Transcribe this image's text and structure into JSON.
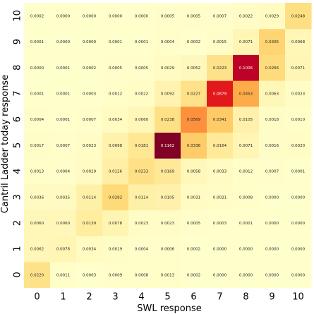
{
  "chart_data": {
    "type": "heatmap",
    "title": "",
    "xlabel": "SWL response",
    "ylabel": "Cantril Ladder today response",
    "x_categories": [
      "0",
      "1",
      "2",
      "3",
      "4",
      "5",
      "6",
      "7",
      "8",
      "9",
      "10"
    ],
    "y_categories": [
      "0",
      "1",
      "2",
      "3",
      "4",
      "5",
      "6",
      "7",
      "8",
      "9",
      "10"
    ],
    "y_order": "bottom-to-top",
    "grid": false,
    "colormap": "YlOrRd",
    "value_range": [
      0,
      0.1162
    ],
    "values": [
      [
        "0.0220",
        "0.0011",
        "0.0003",
        "0.0009",
        "0.0008",
        "0.0013",
        "0.0002",
        "0.0000",
        "0.0000",
        "0.0000",
        "0.0000"
      ],
      [
        "0.0062",
        "0.0076",
        "0.0034",
        "0.0019",
        "0.0004",
        "0.0006",
        "0.0002",
        "0.0000",
        "0.0000",
        "0.0000",
        "0.0000"
      ],
      [
        "0.0060",
        "0.0060",
        "0.0139",
        "0.0078",
        "0.0023",
        "0.0023",
        "0.0005",
        "0.0003",
        "0.0001",
        "0.0000",
        "0.0000"
      ],
      [
        "0.0036",
        "0.0035",
        "0.0114",
        "0.0282",
        "0.0114",
        "0.0105",
        "0.0031",
        "0.0021",
        "0.0008",
        "0.0000",
        "0.0000"
      ],
      [
        "0.0013",
        "0.0004",
        "0.0029",
        "0.0126",
        "0.0233",
        "0.0169",
        "0.0058",
        "0.0033",
        "0.0012",
        "0.0007",
        "0.0001"
      ],
      [
        "0.0017",
        "0.0007",
        "0.0023",
        "0.0098",
        "0.0181",
        "0.1162",
        "0.0336",
        "0.0164",
        "0.0071",
        "0.0016",
        "0.0020"
      ],
      [
        "0.0004",
        "0.0001",
        "0.0007",
        "0.0034",
        "0.0060",
        "0.0238",
        "0.0569",
        "0.0341",
        "0.0105",
        "0.0018",
        "0.0010"
      ],
      [
        "0.0001",
        "0.0001",
        "0.0003",
        "0.0012",
        "0.0022",
        "0.0092",
        "0.0227",
        "0.0879",
        "0.0453",
        "0.0063",
        "0.0023"
      ],
      [
        "0.0000",
        "0.0001",
        "0.0002",
        "0.0005",
        "0.0005",
        "0.0029",
        "0.0052",
        "0.0223",
        "0.1006",
        "0.0266",
        "0.0071"
      ],
      [
        "0.0001",
        "0.0000",
        "0.0000",
        "0.0001",
        "0.0001",
        "0.0004",
        "0.0002",
        "0.0015",
        "0.0071",
        "0.0305",
        "0.0068"
      ],
      [
        "0.0002",
        "0.0000",
        "0.0000",
        "0.0000",
        "0.0000",
        "0.0005",
        "0.0005",
        "0.0007",
        "0.0022",
        "0.0029",
        "0.0248"
      ]
    ]
  }
}
